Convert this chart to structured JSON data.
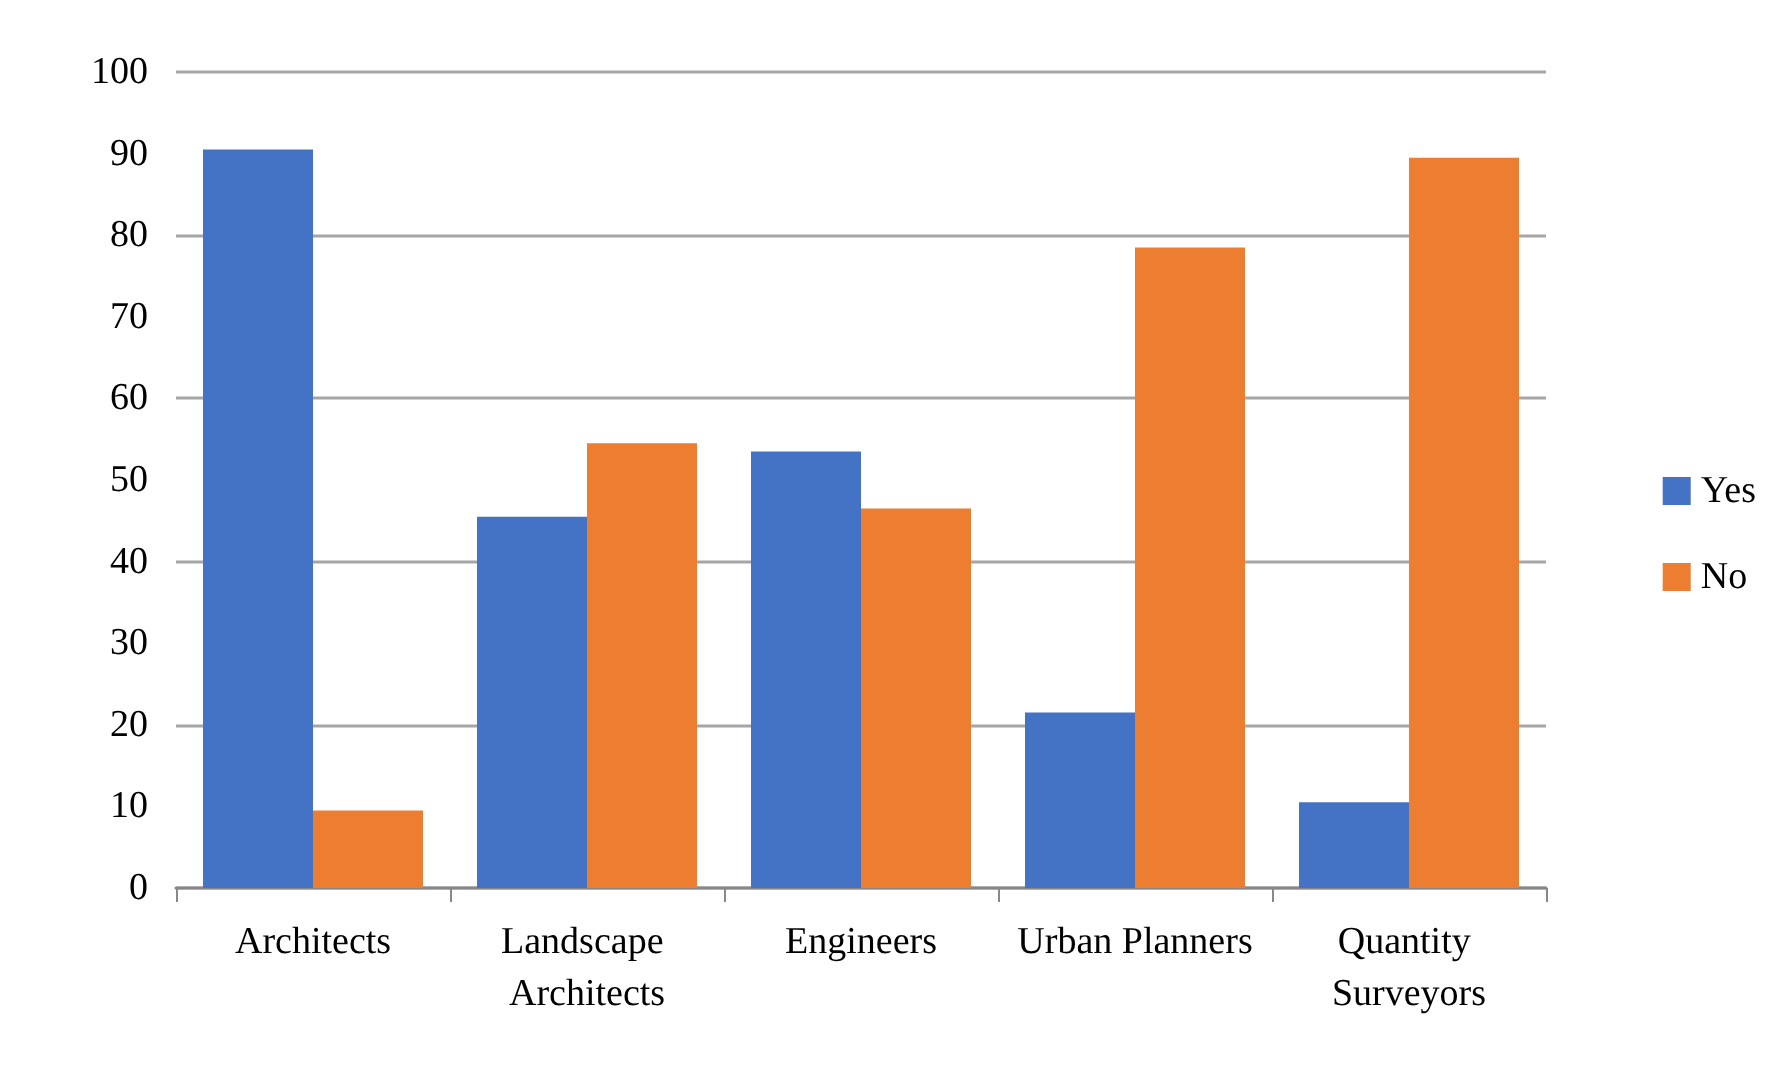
{
  "chart_data": {
    "type": "bar",
    "categories": [
      "Architects",
      "Landscape Architects",
      "Engineers",
      "Urban Planners",
      "Quantity Surveyors"
    ],
    "series": [
      {
        "name": "Yes",
        "color": "#4472c4",
        "values": [
          90.5,
          45.5,
          53.5,
          21.5,
          10.5
        ]
      },
      {
        "name": "No",
        "color": "#ed7d31",
        "values": [
          9.5,
          54.5,
          46.5,
          78.5,
          89.5
        ]
      }
    ],
    "ylim": [
      0,
      100
    ],
    "yticks": [
      0,
      10,
      20,
      30,
      40,
      50,
      60,
      70,
      80,
      90,
      100
    ],
    "grid": "y",
    "legend": "right"
  }
}
